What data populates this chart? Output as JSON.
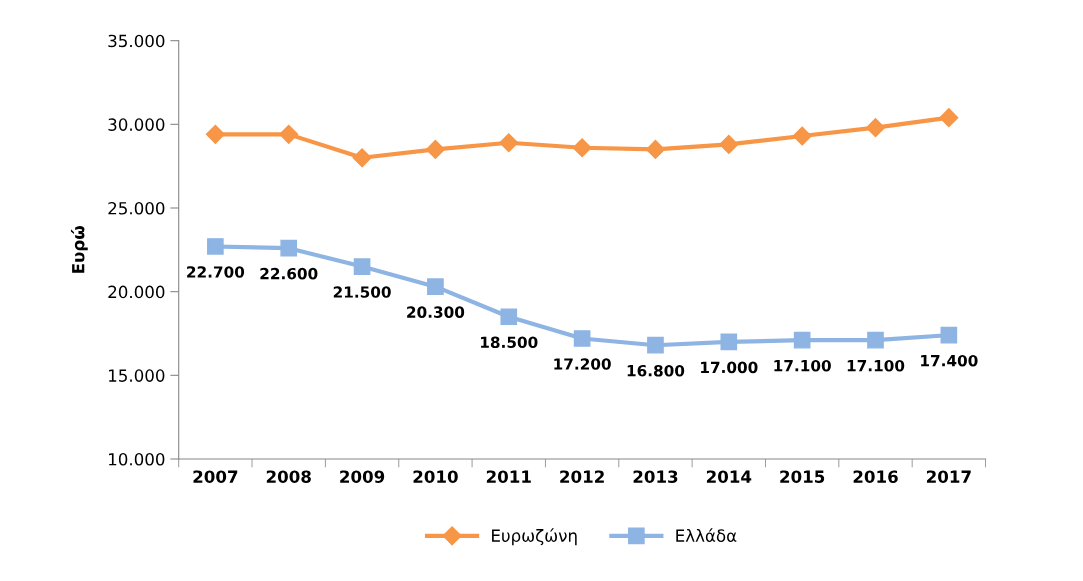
{
  "chart_data": {
    "type": "line",
    "ylabel": "Ευρώ",
    "categories": [
      "2007",
      "2008",
      "2009",
      "2010",
      "2011",
      "2012",
      "2013",
      "2014",
      "2015",
      "2016",
      "2017"
    ],
    "series": [
      {
        "name": "Ευρωζώνη",
        "color": "#f79646",
        "marker": "diamond",
        "values": [
          29400,
          29400,
          28000,
          28500,
          28900,
          28600,
          28500,
          28800,
          29300,
          29800,
          30400
        ]
      },
      {
        "name": "Ελλάδα",
        "color": "#8eb4e3",
        "marker": "square",
        "values": [
          22700,
          22600,
          21500,
          20300,
          18500,
          17200,
          16800,
          17000,
          17100,
          17100,
          17400
        ],
        "value_labels": [
          "22.700",
          "22.600",
          "21.500",
          "20.300",
          "18.500",
          "17.200",
          "16.800",
          "17.000",
          "17.100",
          "17.100",
          "17.400"
        ]
      }
    ],
    "ylim": [
      10000,
      35000
    ],
    "yticks": [
      {
        "value": 10000,
        "label": "10.000"
      },
      {
        "value": 15000,
        "label": "15.000"
      },
      {
        "value": 20000,
        "label": "20.000"
      },
      {
        "value": 25000,
        "label": "25.000"
      },
      {
        "value": 30000,
        "label": "30.000"
      },
      {
        "value": 35000,
        "label": "35.000"
      }
    ],
    "grid": false,
    "legend": "bottom",
    "line_style": "solid"
  }
}
